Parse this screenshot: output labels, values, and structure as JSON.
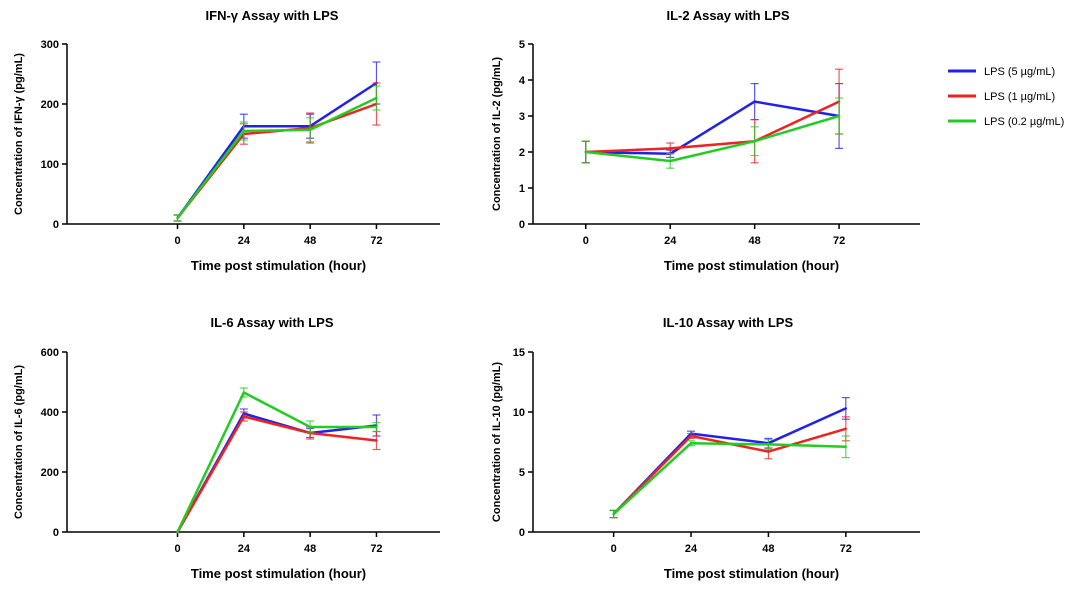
{
  "legend": {
    "entries": [
      {
        "label": "LPS (5 µg/mL)",
        "color": "#2222e6"
      },
      {
        "label": "LPS (1 µg/mL)",
        "color": "#ee2222"
      },
      {
        "label": "LPS (0.2 µg/mL)",
        "color": "#22cc22"
      }
    ]
  },
  "chart_data": [
    {
      "type": "line",
      "title": "IFN-γ Assay with LPS",
      "xlabel": "Time post stimulation (hour)",
      "ylabel": "Concentration of IFN-γ (pg/mL)",
      "x": [
        0,
        24,
        48,
        72
      ],
      "xlim": [
        -40,
        95
      ],
      "ylim": [
        0,
        300
      ],
      "yticks": [
        0,
        100,
        200,
        300
      ],
      "series": [
        {
          "name": "LPS (5 µg/mL)",
          "color": "#2222e6",
          "values": [
            10,
            163,
            163,
            235
          ],
          "errors": [
            5,
            20,
            20,
            35
          ]
        },
        {
          "name": "LPS (1 µg/mL)",
          "color": "#ee2222",
          "values": [
            10,
            150,
            160,
            200
          ],
          "errors": [
            5,
            17,
            25,
            35
          ]
        },
        {
          "name": "LPS (0.2 µg/mL)",
          "color": "#22cc22",
          "values": [
            10,
            155,
            157,
            210
          ],
          "errors": [
            5,
            15,
            20,
            20
          ]
        }
      ]
    },
    {
      "type": "line",
      "title": "IL-2 Assay with LPS",
      "xlabel": "Time post stimulation (hour)",
      "ylabel": "Concentration of IL-2 (pg/mL)",
      "x": [
        0,
        24,
        48,
        72
      ],
      "xlim": [
        -15,
        95
      ],
      "ylim": [
        0,
        5
      ],
      "yticks": [
        0,
        1,
        2,
        3,
        4,
        5
      ],
      "series": [
        {
          "name": "LPS (5 µg/mL)",
          "color": "#2222e6",
          "values": [
            2.0,
            1.95,
            3.4,
            3.0
          ],
          "errors": [
            0.3,
            0.1,
            0.5,
            0.9
          ]
        },
        {
          "name": "LPS (1 µg/mL)",
          "color": "#ee2222",
          "values": [
            2.0,
            2.1,
            2.3,
            3.4
          ],
          "errors": [
            0.3,
            0.15,
            0.6,
            0.9
          ]
        },
        {
          "name": "LPS (0.2 µg/mL)",
          "color": "#22cc22",
          "values": [
            2.0,
            1.75,
            2.3,
            3.0
          ],
          "errors": [
            0.3,
            0.2,
            0.4,
            0.5
          ]
        }
      ]
    },
    {
      "type": "line",
      "title": "IL-6 Assay with LPS",
      "xlabel": "Time post stimulation (hour)",
      "ylabel": "Concentration of IL-6 (pg/mL)",
      "x": [
        0,
        24,
        48,
        72
      ],
      "xlim": [
        -40,
        95
      ],
      "ylim": [
        0,
        600
      ],
      "yticks": [
        0,
        200,
        400,
        600
      ],
      "series": [
        {
          "name": "LPS (5 µg/mL)",
          "color": "#2222e6",
          "values": [
            0,
            395,
            330,
            355
          ],
          "errors": [
            0,
            15,
            15,
            35
          ]
        },
        {
          "name": "LPS (1 µg/mL)",
          "color": "#ee2222",
          "values": [
            0,
            385,
            330,
            305
          ],
          "errors": [
            0,
            15,
            20,
            30
          ]
        },
        {
          "name": "LPS (0.2 µg/mL)",
          "color": "#22cc22",
          "values": [
            0,
            465,
            350,
            350
          ],
          "errors": [
            0,
            15,
            20,
            15
          ]
        }
      ]
    },
    {
      "type": "line",
      "title": "IL-10 Assay with LPS",
      "xlabel": "Time post stimulation (hour)",
      "ylabel": "Concentration of IL-10 (pg/mL)",
      "x": [
        0,
        24,
        48,
        72
      ],
      "xlim": [
        -25,
        95
      ],
      "ylim": [
        0,
        15
      ],
      "yticks": [
        0,
        5,
        10,
        15
      ],
      "series": [
        {
          "name": "LPS (5 µg/mL)",
          "color": "#2222e6",
          "values": [
            1.5,
            8.2,
            7.4,
            10.3
          ],
          "errors": [
            0.3,
            0.2,
            0.4,
            0.9
          ]
        },
        {
          "name": "LPS (1 µg/mL)",
          "color": "#ee2222",
          "values": [
            1.5,
            8.0,
            6.7,
            8.6
          ],
          "errors": [
            0.3,
            0.2,
            0.6,
            1.0
          ]
        },
        {
          "name": "LPS (0.2 µg/mL)",
          "color": "#22cc22",
          "values": [
            1.5,
            7.4,
            7.3,
            7.1
          ],
          "errors": [
            0.3,
            0.2,
            0.4,
            0.9
          ]
        }
      ]
    }
  ]
}
